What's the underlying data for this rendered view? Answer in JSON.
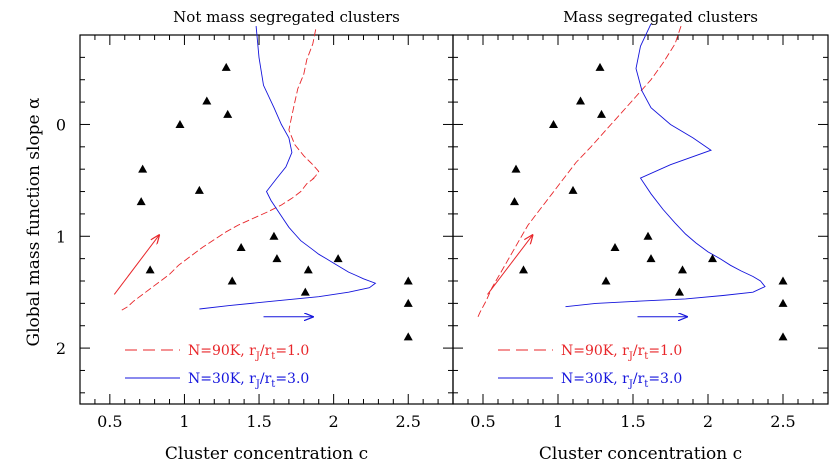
{
  "chart_data": {
    "type": "scatter",
    "shared": {
      "xlabel": "Cluster concentration c",
      "ylabel": "Global mass function slope α",
      "xlim": [
        0.3,
        2.8
      ],
      "ylim": [
        2.5,
        -0.8
      ],
      "xticks": [
        "0.5",
        "1",
        "1.5",
        "2",
        "2.5"
      ],
      "xtick_values": [
        0.5,
        1.0,
        1.5,
        2.0,
        2.5
      ],
      "yticks": [
        "0",
        "1",
        "2"
      ],
      "ytick_values": [
        0,
        1,
        2
      ],
      "colors": {
        "red": "#e8262a",
        "blue": "#1515dc",
        "points": "#000000"
      }
    },
    "panels": [
      {
        "title": "Not mass segregated clusters",
        "observed_points": {
          "x": [
            1.28,
            1.15,
            0.97,
            1.29,
            0.72,
            0.71,
            1.1,
            1.38,
            1.6,
            1.62,
            2.03,
            0.77,
            1.32,
            1.83,
            1.81,
            2.5,
            2.5,
            2.5
          ],
          "y": [
            -0.51,
            -0.21,
            0.0,
            -0.09,
            0.4,
            0.69,
            0.59,
            1.1,
            1.0,
            1.2,
            1.2,
            1.3,
            1.4,
            1.3,
            1.5,
            1.4,
            1.6,
            1.9
          ]
        },
        "series": [
          {
            "name": "N=90K, r_J/r_t=1.0",
            "style": "dashed",
            "color": "#e8262a",
            "x": [
              1.88,
              1.86,
              1.82,
              1.8,
              1.76,
              1.74,
              1.72,
              1.7,
              1.74,
              1.8,
              1.86,
              1.9,
              1.88,
              1.85,
              1.87,
              1.82,
              1.78,
              1.72,
              1.65,
              1.56,
              1.46,
              1.36,
              1.28,
              1.2,
              1.12,
              1.04,
              0.96,
              0.9,
              0.84,
              0.78,
              0.72,
              0.66,
              0.62,
              0.58
            ],
            "y": [
              -0.85,
              -0.72,
              -0.58,
              -0.45,
              -0.32,
              -0.2,
              -0.08,
              0.05,
              0.18,
              0.28,
              0.36,
              0.42,
              0.46,
              0.5,
              0.48,
              0.53,
              0.6,
              0.66,
              0.72,
              0.78,
              0.84,
              0.9,
              0.96,
              1.03,
              1.1,
              1.18,
              1.26,
              1.34,
              1.4,
              1.46,
              1.52,
              1.58,
              1.63,
              1.66
            ]
          },
          {
            "name": "N=30K, r_J/r_t=3.0",
            "style": "solid",
            "color": "#1515dc",
            "x": [
              1.48,
              1.5,
              1.53,
              1.6,
              1.65,
              1.7,
              1.72,
              1.68,
              1.62,
              1.55,
              1.58,
              1.62,
              1.66,
              1.7,
              1.74,
              1.78,
              1.82,
              1.86,
              1.9,
              1.95,
              2.0,
              2.05,
              2.1,
              2.15,
              2.2,
              2.28,
              2.24,
              2.1,
              1.9,
              1.6,
              1.3,
              1.1
            ],
            "y": [
              -0.88,
              -0.6,
              -0.35,
              -0.15,
              0.0,
              0.12,
              0.25,
              0.38,
              0.48,
              0.6,
              0.68,
              0.76,
              0.84,
              0.92,
              0.98,
              1.04,
              1.08,
              1.12,
              1.16,
              1.2,
              1.24,
              1.28,
              1.32,
              1.35,
              1.38,
              1.42,
              1.46,
              1.5,
              1.54,
              1.58,
              1.62,
              1.65
            ]
          }
        ],
        "arrows": [
          {
            "color": "#e8262a",
            "from": [
              0.53,
              1.52
            ],
            "to": [
              0.83,
              0.99
            ]
          },
          {
            "color": "#1515dc",
            "from": [
              1.53,
              1.72
            ],
            "to": [
              1.86,
              1.72
            ]
          }
        ]
      },
      {
        "title": "Mass segregated clusters",
        "observed_points": {
          "x": [
            1.28,
            1.15,
            0.97,
            1.29,
            0.72,
            0.71,
            1.1,
            1.38,
            1.6,
            1.62,
            2.03,
            0.77,
            1.32,
            1.83,
            1.81,
            2.5,
            2.5,
            2.5
          ],
          "y": [
            -0.51,
            -0.21,
            0.0,
            -0.09,
            0.4,
            0.69,
            0.59,
            1.1,
            1.0,
            1.2,
            1.2,
            1.3,
            1.4,
            1.3,
            1.5,
            1.4,
            1.6,
            1.9
          ]
        },
        "series": [
          {
            "name": "N=90K, r_J/r_t=1.0",
            "style": "dashed",
            "color": "#e8262a",
            "x": [
              1.82,
              1.78,
              1.7,
              1.62,
              1.52,
              1.42,
              1.32,
              1.22,
              1.12,
              1.04,
              0.96,
              0.88,
              0.8,
              0.74,
              0.68,
              0.62,
              0.56,
              0.52,
              0.48,
              0.46
            ],
            "y": [
              -0.88,
              -0.72,
              -0.55,
              -0.4,
              -0.25,
              -0.1,
              0.05,
              0.2,
              0.34,
              0.48,
              0.62,
              0.76,
              0.9,
              1.04,
              1.18,
              1.32,
              1.46,
              1.58,
              1.68,
              1.74
            ]
          },
          {
            "name": "N=30K, r_J/r_t=3.0",
            "style": "solid",
            "color": "#1515dc",
            "x": [
              1.62,
              1.55,
              1.52,
              1.56,
              1.62,
              1.75,
              1.9,
              2.02,
              1.75,
              1.55,
              1.62,
              1.7,
              1.78,
              1.85,
              1.92,
              2.0,
              2.08,
              2.15,
              2.22,
              2.3,
              2.35,
              2.38,
              2.3,
              2.1,
              1.85,
              1.55,
              1.25,
              1.05
            ],
            "y": [
              -0.9,
              -0.7,
              -0.5,
              -0.3,
              -0.15,
              0.0,
              0.12,
              0.23,
              0.36,
              0.48,
              0.62,
              0.76,
              0.88,
              0.98,
              1.06,
              1.14,
              1.2,
              1.26,
              1.31,
              1.36,
              1.4,
              1.45,
              1.5,
              1.53,
              1.56,
              1.58,
              1.6,
              1.63
            ]
          }
        ],
        "arrows": [
          {
            "color": "#e8262a",
            "from": [
              0.53,
              1.52
            ],
            "to": [
              0.83,
              0.99
            ]
          },
          {
            "color": "#1515dc",
            "from": [
              1.53,
              1.72
            ],
            "to": [
              1.86,
              1.72
            ]
          }
        ]
      }
    ]
  }
}
